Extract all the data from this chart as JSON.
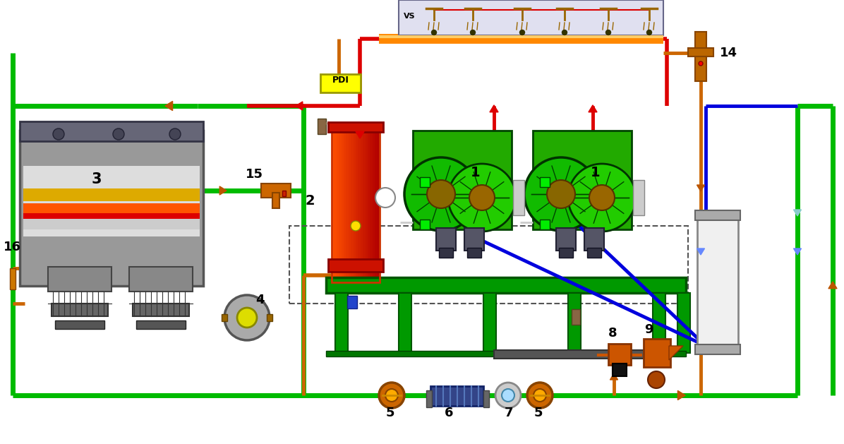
{
  "bg_color": "#ffffff",
  "green": "#00bb00",
  "red": "#dd0000",
  "orange": "#cc6600",
  "dark_orange": "#bb5500",
  "blue": "#0000dd",
  "light_blue": "#4488ff",
  "pipe_orange": "#ff8800",
  "gray": "#888888",
  "dark_gray": "#444444",
  "silver": "#cccccc",
  "yellow": "#ffff00",
  "bright_green": "#00dd00"
}
